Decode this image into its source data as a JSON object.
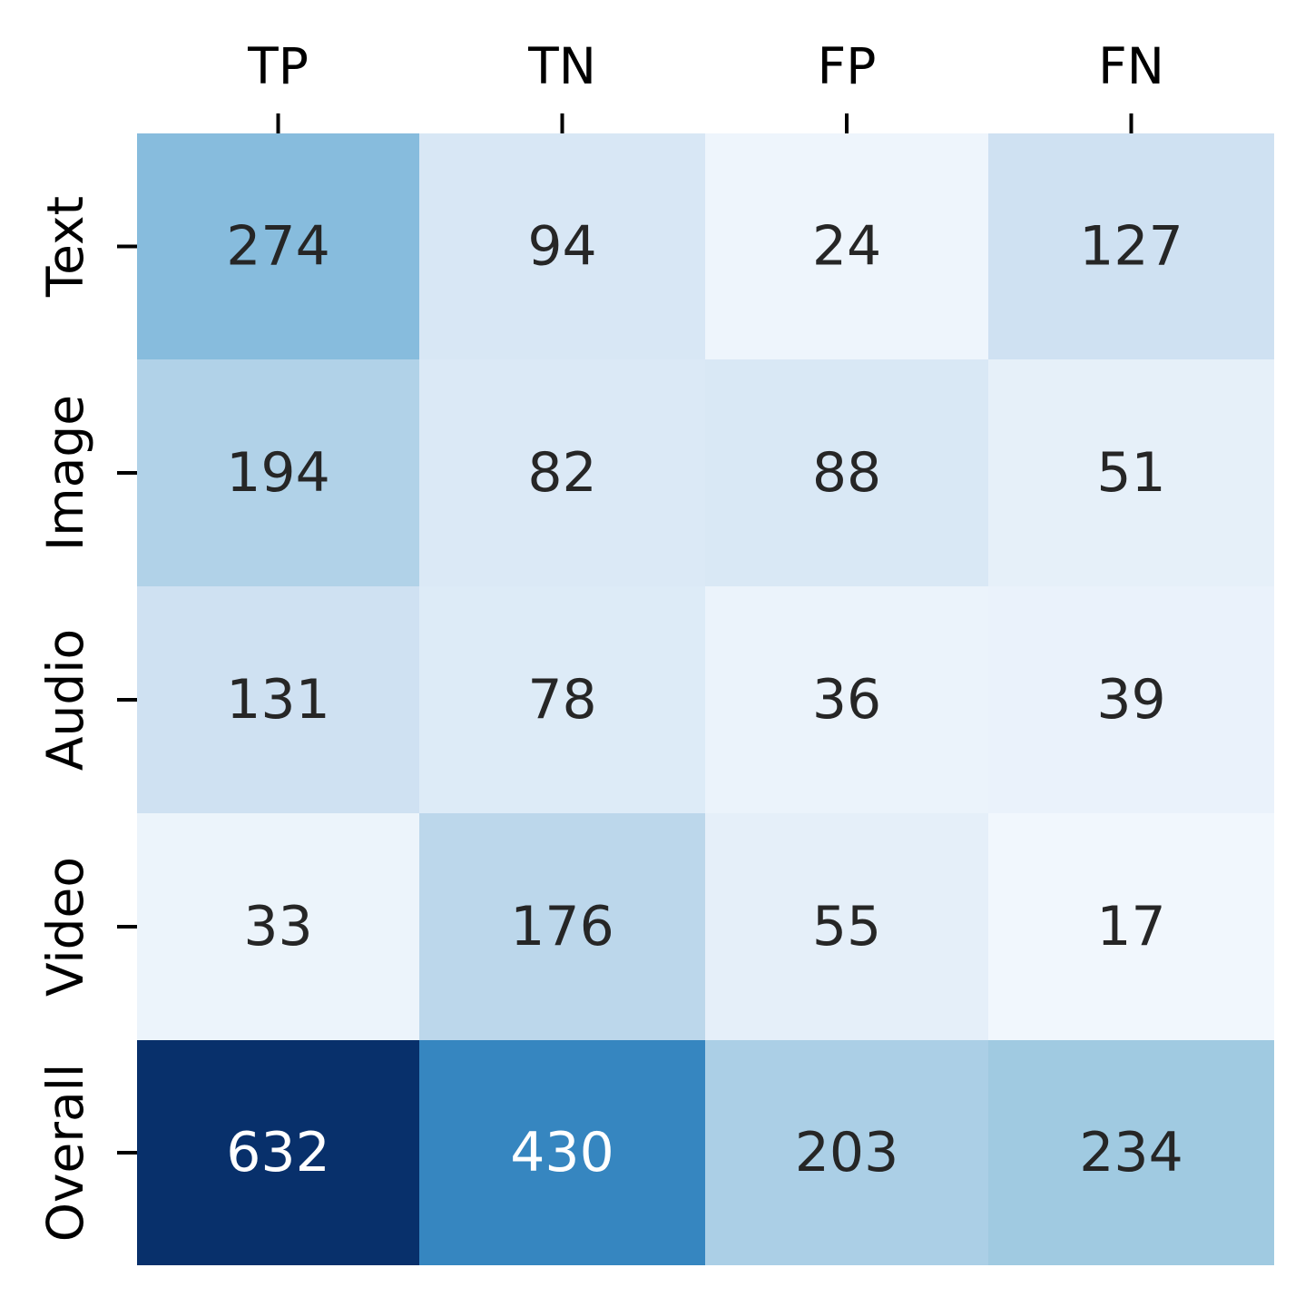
{
  "chart_data": {
    "type": "heatmap",
    "title": "",
    "xlabel": "",
    "ylabel": "",
    "x_position": "top",
    "colormap": "Blues",
    "colorbar": false,
    "grid": false,
    "columns": [
      "TP",
      "TN",
      "FP",
      "FN"
    ],
    "rows": [
      "Text",
      "Image",
      "Audio",
      "Video",
      "Overall"
    ],
    "values": [
      [
        274,
        94,
        24,
        127
      ],
      [
        194,
        82,
        88,
        51
      ],
      [
        131,
        78,
        36,
        39
      ],
      [
        33,
        176,
        55,
        17
      ],
      [
        632,
        430,
        203,
        234
      ]
    ],
    "colors": [
      [
        "#87bcdd",
        "#d8e7f5",
        "#eef5fc",
        "#cfe1f2"
      ],
      [
        "#b1d2e8",
        "#dbe9f6",
        "#d9e8f5",
        "#e6f0f9"
      ],
      [
        "#cfe1f2",
        "#ddebf7",
        "#ebf3fb",
        "#eaf2fb"
      ],
      [
        "#ecf4fb",
        "#bcd7eb",
        "#e5eff9",
        "#f1f7fd"
      ],
      [
        "#08306b",
        "#3686c0",
        "#abcfe6",
        "#a0cae1"
      ]
    ],
    "text_color_dark": "#262626",
    "text_color_light": "#ffffff"
  }
}
